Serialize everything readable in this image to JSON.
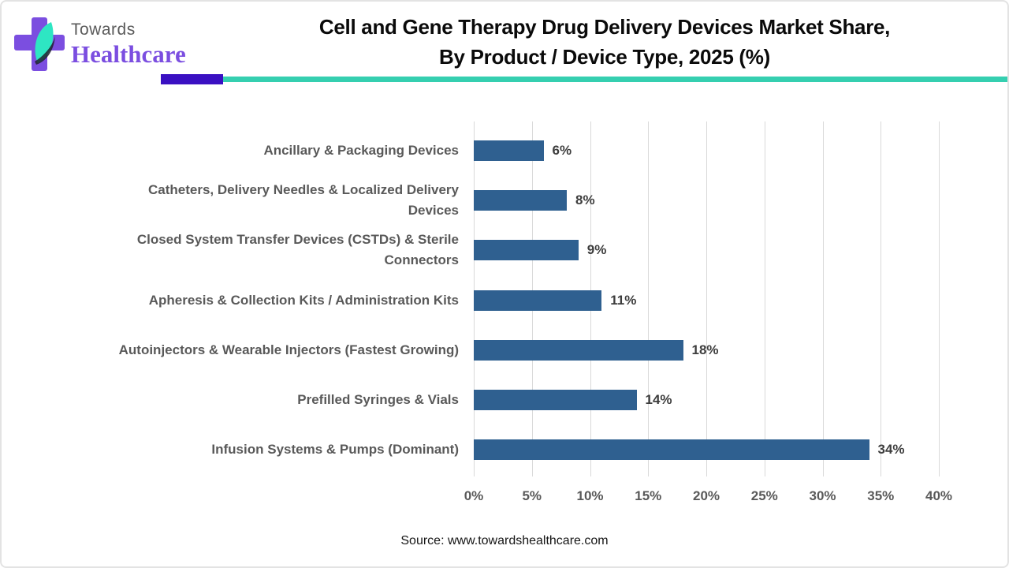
{
  "header": {
    "logo_top": "Towards",
    "logo_bottom": "Healthcare",
    "title_line1": "Cell and Gene Therapy Drug Delivery Devices Market Share,",
    "title_line2": "By Product / Device Type, 2025 (%)"
  },
  "accents": {
    "purple_block": "#3a10c2",
    "teal_line": "#35cfb0",
    "logo_purple": "#7b4ee0",
    "leaf_teal": "#2ee6c3"
  },
  "chart_data": {
    "type": "bar",
    "orientation": "horizontal",
    "title": "Cell and Gene Therapy Drug Delivery Devices Market Share, By Product / Device Type, 2025 (%)",
    "categories": [
      "Ancillary & Packaging Devices",
      "Catheters, Delivery Needles & Localized Delivery\nDevices",
      "Closed System Transfer Devices (CSTDs) & Sterile\nConnectors",
      "Apheresis & Collection Kits / Administration Kits",
      "Autoinjectors & Wearable Injectors (Fastest Growing)",
      "Prefilled Syringes & Vials",
      "Infusion Systems & Pumps (Dominant)"
    ],
    "values": [
      6,
      8,
      9,
      11,
      18,
      14,
      34
    ],
    "value_labels": [
      "6%",
      "8%",
      "9%",
      "11%",
      "18%",
      "14%",
      "34%"
    ],
    "xlim": [
      0,
      40
    ],
    "x_ticks": [
      "0%",
      "5%",
      "10%",
      "15%",
      "20%",
      "25%",
      "30%",
      "35%",
      "40%"
    ],
    "xlabel": "",
    "ylabel": "",
    "bar_color": "#2f6090",
    "grid": true,
    "gridline_color": "#d9d9d9",
    "legend": "none"
  },
  "footer": {
    "source": "Source: www.towardshealthcare.com"
  }
}
